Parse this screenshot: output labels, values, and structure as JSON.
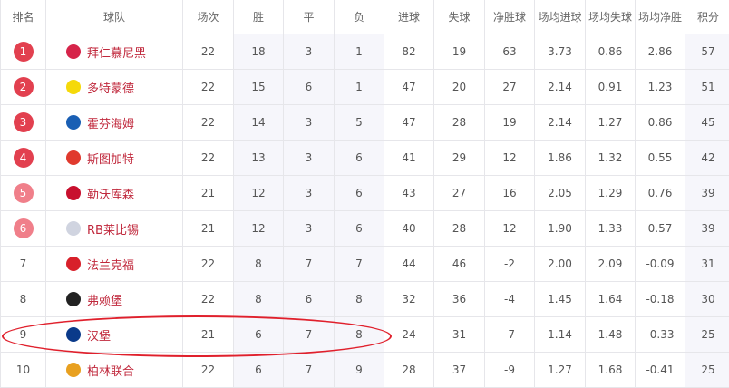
{
  "headers": [
    "排名",
    "球队",
    "场次",
    "胜",
    "平",
    "负",
    "进球",
    "失球",
    "净胜球",
    "场均进球",
    "场均失球",
    "场均净胜",
    "积分"
  ],
  "colors": {
    "badge_top": "#e2404f",
    "badge_mid": "#f07f8a",
    "team_text": "#c0283c",
    "highlight_ring": "#e0202c"
  },
  "rows": [
    {
      "rank": "1",
      "team": "拜仁慕尼黑",
      "logo": "#d6244a",
      "cells": [
        "22",
        "18",
        "3",
        "1",
        "82",
        "19",
        "63",
        "3.73",
        "0.86",
        "2.86",
        "57"
      ]
    },
    {
      "rank": "2",
      "team": "多特蒙德",
      "logo": "#f5d90a",
      "cells": [
        "22",
        "15",
        "6",
        "1",
        "47",
        "20",
        "27",
        "2.14",
        "0.91",
        "1.23",
        "51"
      ]
    },
    {
      "rank": "3",
      "team": "霍芬海姆",
      "logo": "#1a5fb4",
      "cells": [
        "22",
        "14",
        "3",
        "5",
        "47",
        "28",
        "19",
        "2.14",
        "1.27",
        "0.86",
        "45"
      ]
    },
    {
      "rank": "4",
      "team": "斯图加特",
      "logo": "#e03a2e",
      "cells": [
        "22",
        "13",
        "3",
        "6",
        "41",
        "29",
        "12",
        "1.86",
        "1.32",
        "0.55",
        "42"
      ]
    },
    {
      "rank": "5",
      "team": "勒沃库森",
      "logo": "#c8102e",
      "cells": [
        "21",
        "12",
        "3",
        "6",
        "43",
        "27",
        "16",
        "2.05",
        "1.29",
        "0.76",
        "39"
      ]
    },
    {
      "rank": "6",
      "team": "RB莱比锡",
      "logo": "#d0d4e0",
      "cells": [
        "21",
        "12",
        "3",
        "6",
        "40",
        "28",
        "12",
        "1.90",
        "1.33",
        "0.57",
        "39"
      ]
    },
    {
      "rank": "7",
      "team": "法兰克福",
      "logo": "#d8202a",
      "cells": [
        "22",
        "8",
        "7",
        "7",
        "44",
        "46",
        "-2",
        "2.00",
        "2.09",
        "-0.09",
        "31"
      ]
    },
    {
      "rank": "8",
      "team": "弗赖堡",
      "logo": "#222222",
      "cells": [
        "22",
        "8",
        "6",
        "8",
        "32",
        "36",
        "-4",
        "1.45",
        "1.64",
        "-0.18",
        "30"
      ]
    },
    {
      "rank": "9",
      "team": "汉堡",
      "logo": "#0a3a8a",
      "cells": [
        "21",
        "6",
        "7",
        "8",
        "24",
        "31",
        "-7",
        "1.14",
        "1.48",
        "-0.33",
        "25"
      ]
    },
    {
      "rank": "10",
      "team": "柏林联合",
      "logo": "#e8a020",
      "cells": [
        "22",
        "6",
        "7",
        "9",
        "28",
        "37",
        "-9",
        "1.27",
        "1.68",
        "-0.41",
        "25"
      ]
    }
  ]
}
